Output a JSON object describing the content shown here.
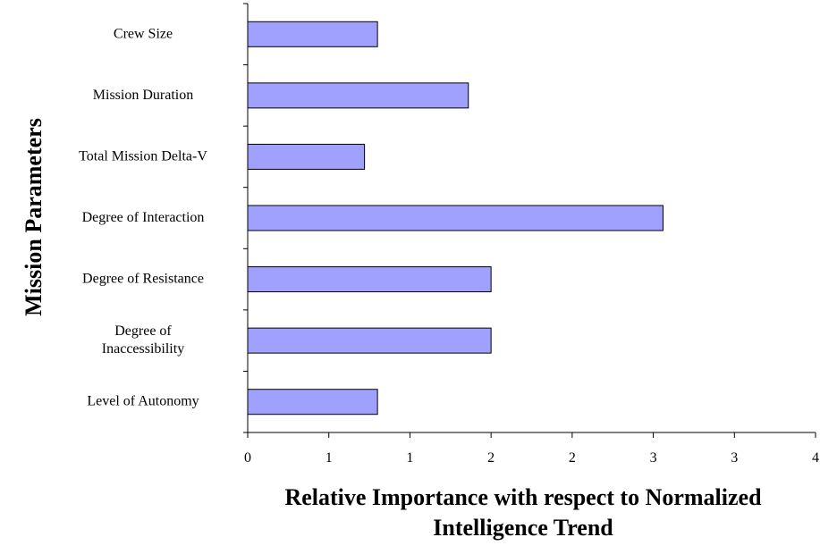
{
  "chart_data": {
    "type": "bar",
    "orientation": "horizontal",
    "title": "",
    "xlabel": "Relative Importance with respect to Normalized Intelligence Trend",
    "xlabel_lines": [
      "Relative Importance with respect to Normalized",
      "Intelligence Trend"
    ],
    "ylabel": "Mission Parameters",
    "categories": [
      "Crew Size",
      "Mission Duration",
      "Total Mission Delta-V",
      "Degree of Interaction",
      "Degree of Resistance",
      "Degree of Inaccessibility",
      "Level of Autonomy"
    ],
    "category_lines": [
      [
        "Crew Size"
      ],
      [
        "Mission Duration"
      ],
      [
        "Total Mission Delta-V"
      ],
      [
        "Degree of Interaction"
      ],
      [
        "Degree of Resistance"
      ],
      [
        "Degree of",
        "Inaccessibility"
      ],
      [
        "Level of Autonomy"
      ]
    ],
    "values": [
      0.8,
      1.36,
      0.72,
      2.56,
      1.5,
      1.5,
      0.8
    ],
    "xlim": [
      0,
      3.5
    ],
    "x_ticks": [
      0,
      0.5,
      1,
      1.5,
      2,
      2.5,
      3,
      3.5
    ],
    "x_tick_labels": [
      "0",
      "1",
      "1",
      "2",
      "2",
      "3",
      "3",
      "4"
    ],
    "bar_color": "#a0a0ff",
    "bar_edge_color": "#000000",
    "grid": false,
    "legend": false
  }
}
